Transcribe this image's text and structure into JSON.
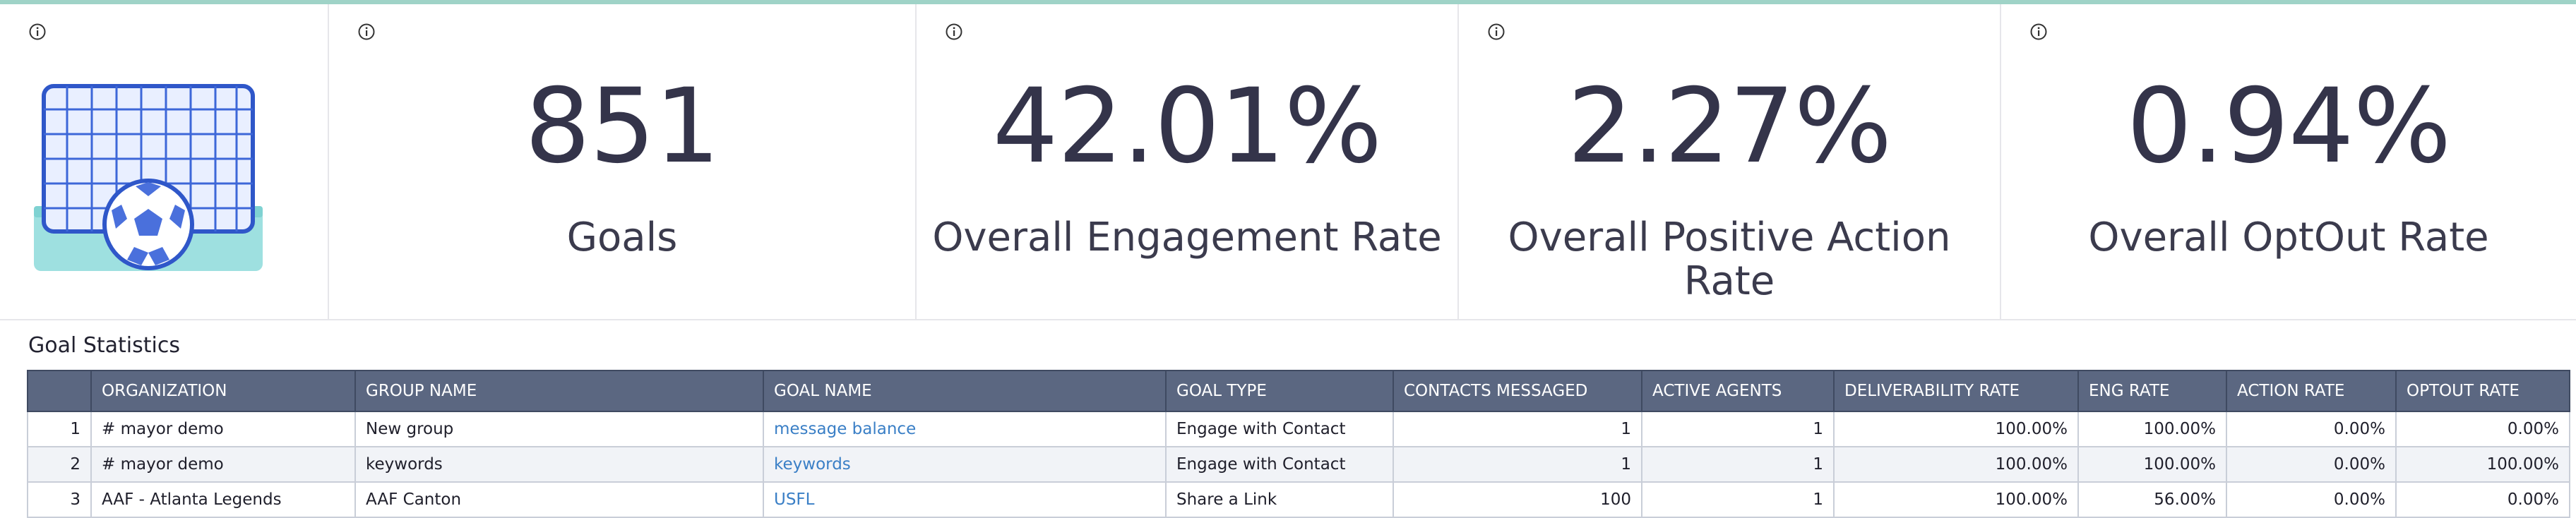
{
  "kpis": [
    {
      "value": "851",
      "label": "Goals"
    },
    {
      "value": "42.01%",
      "label": "Overall Engagement Rate"
    },
    {
      "value": "2.27%",
      "label": "Overall Positive Action Rate"
    },
    {
      "value": "0.94%",
      "label": "Overall OptOut Rate"
    }
  ],
  "info_icon": "info-circle-icon",
  "illustration": "soccer-goal-icon",
  "section_title": "Goal Statistics",
  "table": {
    "headers": [
      "",
      "ORGANIZATION",
      "GROUP NAME",
      "GOAL NAME",
      "GOAL TYPE",
      "CONTACTS MESSAGED",
      "ACTIVE AGENTS",
      "DELIVERABILITY RATE",
      "ENG RATE",
      "ACTION RATE",
      "OPTOUT RATE"
    ],
    "rows": [
      [
        "1",
        "# mayor demo",
        "New group",
        "message balance",
        "Engage with Contact",
        "1",
        "1",
        "100.00%",
        "100.00%",
        "0.00%",
        "0.00%"
      ],
      [
        "2",
        "# mayor demo",
        "keywords",
        "keywords",
        "Engage with Contact",
        "1",
        "1",
        "100.00%",
        "100.00%",
        "0.00%",
        "100.00%"
      ],
      [
        "3",
        "AAF - Atlanta Legends",
        "AAF Canton",
        "USFL",
        "Share a Link",
        "100",
        "1",
        "100.00%",
        "56.00%",
        "0.00%",
        "0.00%"
      ]
    ]
  },
  "colors": {
    "header_bg": "#5b6781",
    "link": "#3a7fc6",
    "accent_line": "#9fd3c7"
  }
}
